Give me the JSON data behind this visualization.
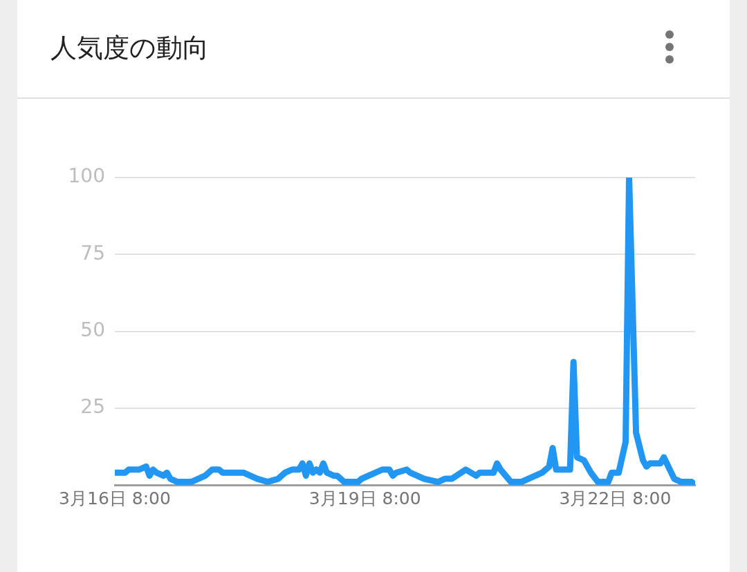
{
  "chart_data": {
    "type": "line",
    "title": "人気度の動向",
    "x": [
      "--03-16T08:00",
      "--03-16T11:00",
      "--03-16T12:00",
      "--03-16T15:00",
      "--03-16T17:00",
      "--03-16T18:00",
      "--03-16T19:00",
      "--03-16T20:00",
      "--03-16T22:00",
      "--03-16T23:00",
      "--03-17T00:00",
      "--03-17T02:00",
      "--03-17T06:00",
      "--03-17T08:00",
      "--03-17T10:00",
      "--03-17T12:00",
      "--03-17T14:00",
      "--03-17T15:00",
      "--03-17T21:00",
      "--03-17T23:00",
      "--03-18T01:00",
      "--03-18T04:00",
      "--03-18T07:00",
      "--03-18T09:00",
      "--03-18T11:00",
      "--03-18T13:00",
      "--03-18T14:00",
      "--03-18T15:00",
      "--03-18T16:00",
      "--03-18T17:00",
      "--03-18T18:00",
      "--03-18T19:00",
      "--03-18T20:00",
      "--03-18T21:00",
      "--03-18T23:00",
      "--03-19T00:00",
      "--03-19T02:00",
      "--03-19T06:00",
      "--03-19T07:00",
      "--03-19T09:00",
      "--03-19T13:00",
      "--03-19T15:00",
      "--03-19T16:00",
      "--03-19T17:00",
      "--03-19T20:00",
      "--03-19T21:00",
      "--03-20T01:00",
      "--03-20T05:00",
      "--03-20T07:00",
      "--03-20T09:00",
      "--03-20T13:00",
      "--03-20T16:00",
      "--03-20T17:00",
      "--03-20T21:00",
      "--03-20T22:00",
      "--03-20T23:00",
      "--03-21T02:00",
      "--03-21T05:00",
      "--03-21T07:00",
      "--03-21T09:00",
      "--03-21T11:00",
      "--03-21T13:00",
      "--03-21T14:00",
      "--03-21T15:00",
      "--03-21T19:00",
      "--03-21T20:00",
      "--03-21T21:00",
      "--03-21T23:00",
      "--03-22T01:00",
      "--03-22T03:00",
      "--03-22T06:00",
      "--03-22T07:00",
      "--03-22T09:00",
      "--03-22T11:00",
      "--03-22T12:00",
      "--03-22T14:00",
      "--03-22T16:00",
      "--03-22T17:00",
      "--03-22T18:00",
      "--03-22T21:00",
      "--03-22T22:00",
      "--03-23T01:00",
      "--03-23T03:00",
      "--03-23T06:00",
      "--03-23T07:00"
    ],
    "values": [
      4,
      4,
      5,
      5,
      6,
      3,
      5,
      4,
      3,
      4,
      2,
      1,
      1,
      2,
      3,
      5,
      5,
      4,
      4,
      3,
      2,
      1,
      2,
      4,
      5,
      5,
      7,
      3,
      7,
      4,
      5,
      4,
      7,
      4,
      3,
      3,
      1,
      1,
      2,
      3,
      5,
      5,
      3,
      4,
      5,
      4,
      2,
      1,
      2,
      2,
      5,
      3,
      4,
      4,
      7,
      5,
      1,
      1,
      2,
      3,
      4,
      6,
      12,
      5,
      5,
      40,
      9,
      8,
      4,
      1,
      1,
      4,
      4,
      14,
      100,
      17,
      8,
      6,
      7,
      7,
      9,
      2,
      1,
      1,
      0
    ],
    "color": "#2196f3",
    "marker": "none",
    "line_style": "solid",
    "xlim": [
      "--03-16T08:00",
      "--03-23T07:00"
    ],
    "xticks": [
      {
        "value": "--03-16T08:00",
        "label": "3月16日 8:00"
      },
      {
        "value": "--03-19T08:00",
        "label": "3月19日 8:00"
      },
      {
        "value": "--03-22T08:00",
        "label": "3月22日 8:00"
      }
    ],
    "ylim": [
      0,
      100
    ],
    "yticks": [
      25,
      50,
      75,
      100
    ],
    "grid": "y"
  }
}
